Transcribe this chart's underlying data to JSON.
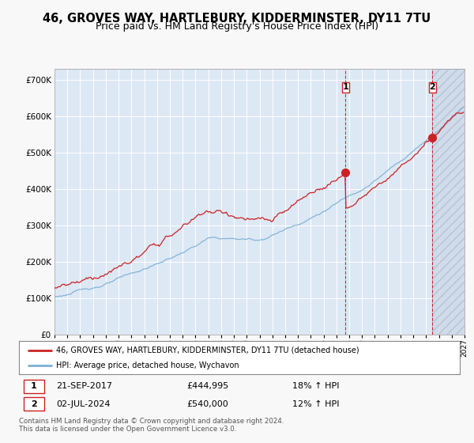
{
  "title1": "46, GROVES WAY, HARTLEBURY, KIDDERMINSTER, DY11 7TU",
  "title2": "Price paid vs. HM Land Registry's House Price Index (HPI)",
  "ylim": [
    0,
    730000
  ],
  "yticks": [
    0,
    100000,
    200000,
    300000,
    400000,
    500000,
    600000,
    700000
  ],
  "ytick_labels": [
    "£0",
    "£100K",
    "£200K",
    "£300K",
    "£400K",
    "£500K",
    "£600K",
    "£700K"
  ],
  "x_start_year": 1995,
  "x_end_year": 2027,
  "sale1_year": 2017.72,
  "sale1_value": 444995,
  "sale1_date": "21-SEP-2017",
  "sale1_price": "£444,995",
  "sale1_hpi": "18% ↑ HPI",
  "sale2_year": 2024.5,
  "sale2_value": 540000,
  "sale2_date": "02-JUL-2024",
  "sale2_price": "£540,000",
  "sale2_hpi": "12% ↑ HPI",
  "hpi_line_color": "#7bafd4",
  "price_line_color": "#cc2222",
  "plot_bg_color": "#dde8f5",
  "hatch_bg_color": "#cdd8e8",
  "legend_red_label": "46, GROVES WAY, HARTLEBURY, KIDDERMINSTER, DY11 7TU (detached house)",
  "legend_blue_label": "HPI: Average price, detached house, Wychavon",
  "footer": "Contains HM Land Registry data © Crown copyright and database right 2024.\nThis data is licensed under the Open Government Licence v3.0.",
  "grid_color": "#ffffff",
  "title_fontsize": 10.5,
  "subtitle_fontsize": 9
}
